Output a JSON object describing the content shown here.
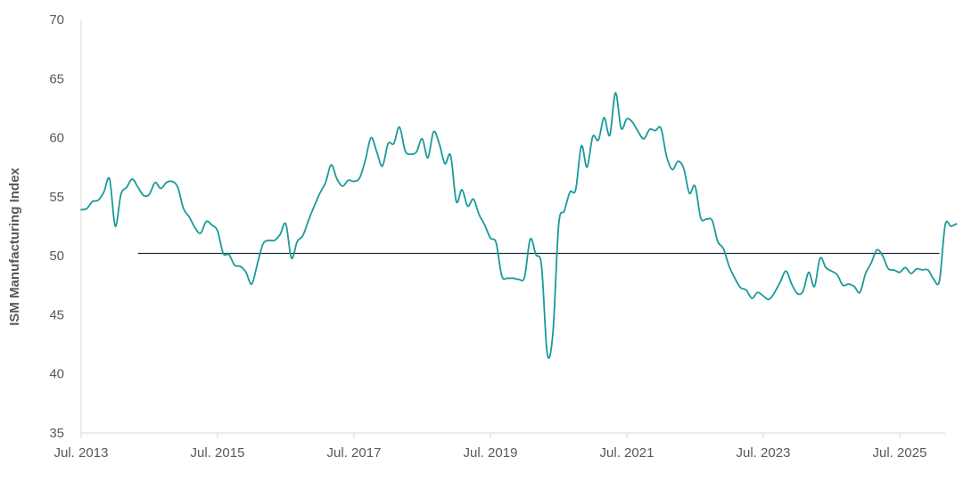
{
  "chart_data": {
    "type": "line",
    "ylabel": "ISM Manufacturing Index",
    "xlabel": "",
    "ylim": [
      35,
      70
    ],
    "yticks": [
      35,
      40,
      45,
      50,
      55,
      60,
      65,
      70
    ],
    "xlim": [
      "2013-07",
      "2026-03"
    ],
    "xticks": [
      {
        "date": "2013-07",
        "label": "Jul. 2013"
      },
      {
        "date": "2015-07",
        "label": "Jul. 2015"
      },
      {
        "date": "2017-07",
        "label": "Jul. 2017"
      },
      {
        "date": "2019-07",
        "label": "Jul. 2019"
      },
      {
        "date": "2021-07",
        "label": "Jul. 2021"
      },
      {
        "date": "2023-07",
        "label": "Jul. 2023"
      },
      {
        "date": "2025-07",
        "label": "Jul. 2025"
      }
    ],
    "grid": false,
    "legend": "none",
    "series": [
      {
        "color": "#1a9a9a",
        "points": [
          [
            "2013-07",
            53.9
          ],
          [
            "2013-08",
            54.0
          ],
          [
            "2013-09",
            54.6
          ],
          [
            "2013-10",
            54.7
          ],
          [
            "2013-11",
            55.4
          ],
          [
            "2013-12",
            56.5
          ],
          [
            "2014-01",
            52.5
          ],
          [
            "2014-02",
            55.2
          ],
          [
            "2014-03",
            55.8
          ],
          [
            "2014-04",
            56.5
          ],
          [
            "2014-05",
            55.8
          ],
          [
            "2014-06",
            55.1
          ],
          [
            "2014-07",
            55.2
          ],
          [
            "2014-08",
            56.2
          ],
          [
            "2014-09",
            55.7
          ],
          [
            "2014-10",
            56.2
          ],
          [
            "2014-11",
            56.3
          ],
          [
            "2014-12",
            55.8
          ],
          [
            "2015-01",
            54.0
          ],
          [
            "2015-02",
            53.3
          ],
          [
            "2015-03",
            52.4
          ],
          [
            "2015-04",
            51.9
          ],
          [
            "2015-05",
            52.9
          ],
          [
            "2015-06",
            52.6
          ],
          [
            "2015-07",
            52.1
          ],
          [
            "2015-08",
            50.2
          ],
          [
            "2015-09",
            50.1
          ],
          [
            "2015-10",
            49.2
          ],
          [
            "2015-11",
            49.1
          ],
          [
            "2015-12",
            48.6
          ],
          [
            "2016-01",
            47.6
          ],
          [
            "2016-02",
            49.3
          ],
          [
            "2016-03",
            51.0
          ],
          [
            "2016-04",
            51.3
          ],
          [
            "2016-05",
            51.3
          ],
          [
            "2016-06",
            51.8
          ],
          [
            "2016-07",
            52.7
          ],
          [
            "2016-08",
            49.8
          ],
          [
            "2016-09",
            51.2
          ],
          [
            "2016-10",
            51.7
          ],
          [
            "2016-11",
            53.0
          ],
          [
            "2016-12",
            54.2
          ],
          [
            "2017-01",
            55.3
          ],
          [
            "2017-02",
            56.2
          ],
          [
            "2017-03",
            57.7
          ],
          [
            "2017-04",
            56.5
          ],
          [
            "2017-05",
            55.9
          ],
          [
            "2017-06",
            56.4
          ],
          [
            "2017-07",
            56.3
          ],
          [
            "2017-08",
            56.6
          ],
          [
            "2017-09",
            58.1
          ],
          [
            "2017-10",
            60.0
          ],
          [
            "2017-11",
            58.8
          ],
          [
            "2017-12",
            57.6
          ],
          [
            "2018-01",
            59.5
          ],
          [
            "2018-02",
            59.5
          ],
          [
            "2018-03",
            60.9
          ],
          [
            "2018-04",
            58.9
          ],
          [
            "2018-05",
            58.6
          ],
          [
            "2018-06",
            58.8
          ],
          [
            "2018-07",
            59.9
          ],
          [
            "2018-08",
            58.3
          ],
          [
            "2018-09",
            60.5
          ],
          [
            "2018-10",
            59.5
          ],
          [
            "2018-11",
            57.8
          ],
          [
            "2018-12",
            58.5
          ],
          [
            "2019-01",
            54.6
          ],
          [
            "2019-02",
            55.6
          ],
          [
            "2019-03",
            54.2
          ],
          [
            "2019-04",
            54.8
          ],
          [
            "2019-05",
            53.5
          ],
          [
            "2019-06",
            52.6
          ],
          [
            "2019-07",
            51.5
          ],
          [
            "2019-08",
            51.1
          ],
          [
            "2019-09",
            48.3
          ],
          [
            "2019-10",
            48.1
          ],
          [
            "2019-11",
            48.1
          ],
          [
            "2019-12",
            48.0
          ],
          [
            "2020-01",
            48.2
          ],
          [
            "2020-02",
            51.4
          ],
          [
            "2020-03",
            50.1
          ],
          [
            "2020-04",
            49.1
          ],
          [
            "2020-05",
            41.7
          ],
          [
            "2020-06",
            43.5
          ],
          [
            "2020-07",
            52.6
          ],
          [
            "2020-08",
            53.8
          ],
          [
            "2020-09",
            55.4
          ],
          [
            "2020-10",
            55.6
          ],
          [
            "2020-11",
            59.3
          ],
          [
            "2020-12",
            57.5
          ],
          [
            "2021-01",
            60.1
          ],
          [
            "2021-02",
            59.8
          ],
          [
            "2021-03",
            61.7
          ],
          [
            "2021-04",
            60.2
          ],
          [
            "2021-05",
            63.8
          ],
          [
            "2021-06",
            60.8
          ],
          [
            "2021-07",
            61.6
          ],
          [
            "2021-08",
            61.3
          ],
          [
            "2021-09",
            60.5
          ],
          [
            "2021-10",
            59.9
          ],
          [
            "2021-11",
            60.7
          ],
          [
            "2021-12",
            60.6
          ],
          [
            "2022-01",
            60.8
          ],
          [
            "2022-02",
            58.4
          ],
          [
            "2022-03",
            57.3
          ],
          [
            "2022-04",
            58.0
          ],
          [
            "2022-05",
            57.4
          ],
          [
            "2022-06",
            55.3
          ],
          [
            "2022-07",
            55.9
          ],
          [
            "2022-08",
            53.2
          ],
          [
            "2022-09",
            53.1
          ],
          [
            "2022-10",
            53.0
          ],
          [
            "2022-11",
            51.2
          ],
          [
            "2022-12",
            50.6
          ],
          [
            "2023-01",
            49.1
          ],
          [
            "2023-02",
            48.1
          ],
          [
            "2023-03",
            47.3
          ],
          [
            "2023-04",
            47.1
          ],
          [
            "2023-05",
            46.4
          ],
          [
            "2023-06",
            46.9
          ],
          [
            "2023-07",
            46.6
          ],
          [
            "2023-08",
            46.3
          ],
          [
            "2023-09",
            46.9
          ],
          [
            "2023-10",
            47.8
          ],
          [
            "2023-11",
            48.7
          ],
          [
            "2023-12",
            47.6
          ],
          [
            "2024-01",
            46.8
          ],
          [
            "2024-02",
            47.0
          ],
          [
            "2024-03",
            48.6
          ],
          [
            "2024-04",
            47.4
          ],
          [
            "2024-05",
            49.8
          ],
          [
            "2024-06",
            49.0
          ],
          [
            "2024-07",
            48.7
          ],
          [
            "2024-08",
            48.4
          ],
          [
            "2024-09",
            47.5
          ],
          [
            "2024-10",
            47.6
          ],
          [
            "2024-11",
            47.4
          ],
          [
            "2024-12",
            46.9
          ],
          [
            "2025-01",
            48.5
          ],
          [
            "2025-02",
            49.4
          ],
          [
            "2025-03",
            50.5
          ],
          [
            "2025-04",
            50.0
          ],
          [
            "2025-05",
            48.9
          ],
          [
            "2025-06",
            48.8
          ],
          [
            "2025-07",
            48.6
          ],
          [
            "2025-08",
            49.0
          ],
          [
            "2025-09",
            48.5
          ],
          [
            "2025-10",
            48.9
          ],
          [
            "2025-11",
            48.8
          ],
          [
            "2025-12",
            48.8
          ],
          [
            "2026-01",
            48.0
          ],
          [
            "2026-02",
            47.9
          ],
          [
            "2026-03",
            52.6
          ],
          [
            "2026-04",
            52.5
          ],
          [
            "2026-05",
            52.7
          ]
        ]
      }
    ],
    "reference_line": {
      "y": 50.2,
      "from": "2014-05",
      "to": "2026-02",
      "color": "#1f2d3d"
    }
  }
}
